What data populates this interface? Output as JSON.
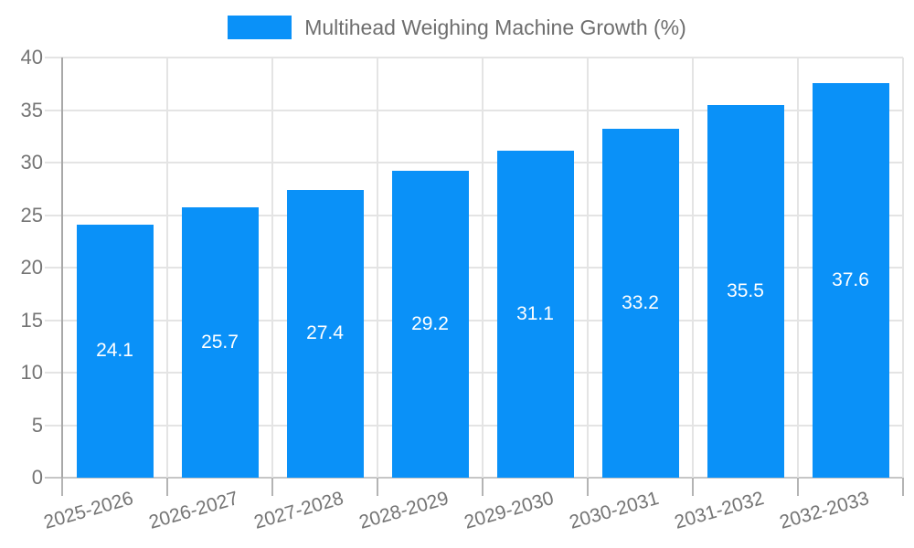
{
  "chart_data": {
    "type": "bar",
    "title": "",
    "legend": [
      "Multihead Weighing Machine Growth (%)"
    ],
    "legend_position": "top-center",
    "categories": [
      "2025-2026",
      "2026-2027",
      "2027-2028",
      "2028-2029",
      "2029-2030",
      "2030-2031",
      "2031-2032",
      "2032-2033"
    ],
    "series": [
      {
        "name": "Multihead Weighing Machine Growth (%)",
        "values": [
          24.1,
          25.7,
          27.4,
          29.2,
          31.1,
          33.2,
          35.5,
          37.6
        ]
      }
    ],
    "bar_value_labels": [
      "24.1",
      "25.7",
      "27.4",
      "29.2",
      "31.1",
      "33.2",
      "35.5",
      "37.6"
    ],
    "xlabel": "",
    "ylabel": "",
    "ylim": [
      0,
      40
    ],
    "yticks": [
      0,
      5,
      10,
      15,
      20,
      25,
      30,
      35,
      40
    ],
    "grid": true,
    "colors": {
      "bar": "#0a91f8",
      "grid": "#e4e4e4",
      "axis_y": "#a8a8a8",
      "axis_x": "#c6c6c6",
      "tick": "#b4b4b4",
      "tick_label": "#757575",
      "legend_text": "#6e6e6e",
      "value_label": "#ffffff",
      "background": "#ffffff"
    }
  }
}
